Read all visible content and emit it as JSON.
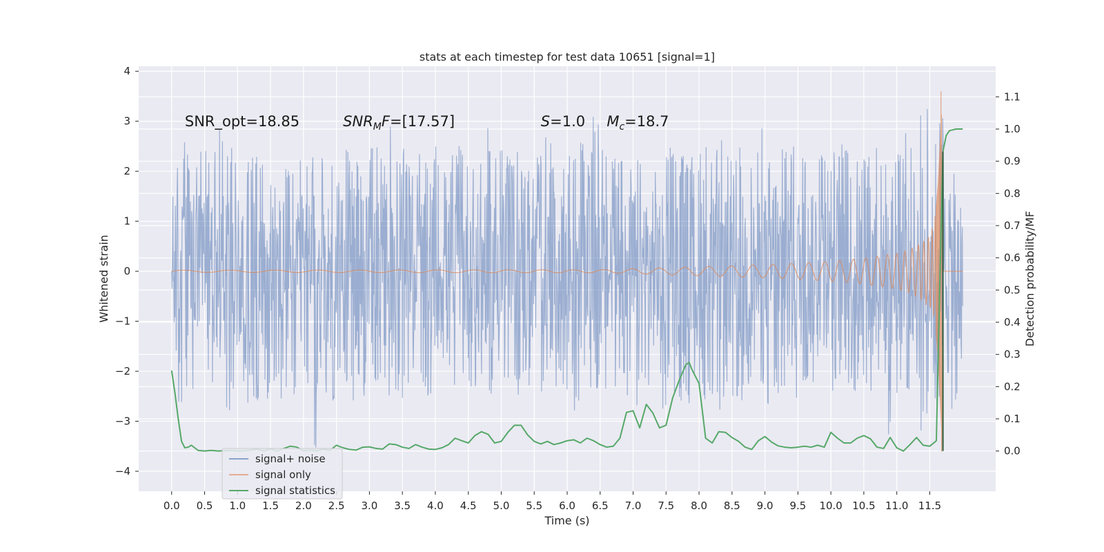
{
  "chart_data": {
    "type": "line",
    "title": "stats at each timestep for test data 10651 [signal=1]",
    "xlabel": "Time (s)",
    "ylabel": "Whitened strain",
    "y2label": "Detection probability/MF",
    "xlim": [
      -0.5,
      12.5
    ],
    "ylim": [
      -4.4,
      4.1
    ],
    "y2lim": [
      -0.125,
      1.195
    ],
    "x_ticks": [
      0.0,
      0.5,
      1.0,
      1.5,
      2.0,
      2.5,
      3.0,
      3.5,
      4.0,
      4.5,
      5.0,
      5.5,
      6.0,
      6.5,
      7.0,
      7.5,
      8.0,
      8.5,
      9.0,
      9.5,
      10.0,
      10.5,
      11.0,
      11.5
    ],
    "x_tick_labels": [
      "0.0",
      "0.5",
      "1.0",
      "1.5",
      "2.0",
      "2.5",
      "3.0",
      "3.5",
      "4.0",
      "4.5",
      "5.0",
      "5.5",
      "6.0",
      "6.5",
      "7.0",
      "7.5",
      "8.0",
      "8.5",
      "9.0",
      "9.5",
      "10.0",
      "10.5",
      "11.0",
      "11.5"
    ],
    "y_ticks": [
      -4,
      -3,
      -2,
      -1,
      0,
      1,
      2,
      3,
      4
    ],
    "y_tick_labels": [
      "−4",
      "−3",
      "−2",
      "−1",
      "0",
      "1",
      "2",
      "3",
      "4"
    ],
    "y2_ticks": [
      0.0,
      0.1,
      0.2,
      0.3,
      0.4,
      0.5,
      0.6,
      0.7,
      0.8,
      0.9,
      1.0,
      1.1
    ],
    "y2_tick_labels": [
      "0.0",
      "0.1",
      "0.2",
      "0.3",
      "0.4",
      "0.5",
      "0.6",
      "0.7",
      "0.8",
      "0.9",
      "1.0",
      "1.1"
    ],
    "grid": true,
    "legend_position": "bottom-left",
    "annotations": [
      {
        "key": "snr_opt",
        "label": "SNR_opt=18.85",
        "x": 0.2,
        "y": 2.9
      },
      {
        "key": "snr_mf",
        "label": "SNR_MF=[17.57]",
        "x": 2.6,
        "y": 2.9
      },
      {
        "key": "s",
        "label": "S=1.0",
        "x": 5.6,
        "y": 2.9
      },
      {
        "key": "mc",
        "label": "M_c=18.7",
        "x": 6.6,
        "y": 2.9
      }
    ],
    "series": [
      {
        "name": "signal+ noise",
        "color": "#4c72b0",
        "alpha": 0.5,
        "axis": "left",
        "t_range": [
          0.0,
          12.0
        ],
        "envelope_upper": [
          1.5,
          2.2,
          2.6,
          3.65,
          2.5,
          2.2,
          3.0,
          2.3,
          2.5,
          2.1,
          2.3,
          2.5,
          2.2,
          2.4,
          2.6,
          2.2,
          2.4,
          2.2,
          2.3,
          2.5,
          3.0,
          2.4,
          2.5,
          2.3,
          2.4,
          2.6,
          2.8,
          2.3,
          3.0,
          2.4,
          2.5,
          2.2,
          2.4,
          2.3,
          2.5,
          2.3,
          2.4,
          2.5,
          2.4,
          2.3,
          3.0,
          2.4,
          2.6,
          2.3,
          2.4,
          2.5,
          2.3,
          2.4,
          3.0,
          2.3,
          2.4,
          2.5,
          2.6,
          2.2,
          3.1,
          2.5,
          2.3,
          2.4,
          2.6,
          2.4,
          2.5,
          2.3,
          2.2,
          2.4,
          2.5,
          2.6,
          2.3,
          2.4,
          2.5,
          2.5,
          3.0,
          2.3,
          2.4,
          2.5,
          2.2,
          2.9,
          2.4,
          2.5,
          2.6,
          2.5,
          3.05,
          2.4,
          2.3,
          2.5,
          2.3,
          2.4,
          2.6,
          2.4,
          2.3,
          2.5,
          2.6,
          2.5,
          2.3,
          2.4,
          3.0,
          2.3,
          3.4,
          2.7,
          3.3,
          2.6,
          3.6,
          2.2
        ],
        "envelope_lower": [
          -1.6,
          -2.7,
          -2.3,
          -2.6,
          -2.5,
          -2.3,
          -2.6,
          -3.0,
          -2.4,
          -2.2,
          -2.8,
          -2.9,
          -2.6,
          -2.2,
          -2.7,
          -2.6,
          -2.5,
          -2.4,
          -3.6,
          -2.5,
          -2.4,
          -2.8,
          -2.2,
          -2.6,
          -2.4,
          -2.5,
          -2.3,
          -2.7,
          -2.5,
          -2.6,
          -2.4,
          -2.5,
          -2.3,
          -2.5,
          -2.6,
          -2.4,
          -2.3,
          -2.5,
          -2.7,
          -2.4,
          -2.8,
          -2.5,
          -2.3,
          -2.4,
          -2.6,
          -2.7,
          -2.3,
          -2.5,
          -2.6,
          -2.4,
          -2.5,
          -2.8,
          -2.6,
          -2.4,
          -2.5,
          -2.7,
          -2.4,
          -2.6,
          -2.5,
          -2.7,
          -2.5,
          -2.4,
          -2.3,
          -2.8,
          -2.5,
          -2.6,
          -2.7,
          -2.4,
          -2.9,
          -2.5,
          -2.8,
          -2.4,
          -2.5,
          -2.6,
          -2.5,
          -2.4,
          -2.7,
          -2.5,
          -2.4,
          -2.6,
          -2.7,
          -2.4,
          -2.3,
          -2.5,
          -2.6,
          -2.4,
          -2.5,
          -2.7,
          -2.4,
          -2.5,
          -2.6,
          -2.5,
          -3.3,
          -2.6,
          -2.5,
          -2.4,
          -3.2,
          -2.6,
          -2.9,
          -2.5,
          -2.6,
          -2.8
        ]
      },
      {
        "name": "signal only",
        "color": "#dd8452",
        "alpha": 0.5,
        "axis": "left",
        "t": [
          0.0,
          6.5,
          7.0,
          7.5,
          8.0,
          8.5,
          9.0,
          9.5,
          10.0,
          10.5,
          11.0,
          11.2,
          11.4,
          11.5,
          11.55,
          11.6,
          11.63,
          11.66,
          11.68,
          11.7,
          11.72,
          12.0
        ],
        "amplitude": [
          0.02,
          0.03,
          0.05,
          0.07,
          0.09,
          0.11,
          0.13,
          0.16,
          0.2,
          0.26,
          0.36,
          0.44,
          0.6,
          0.75,
          0.9,
          1.3,
          1.8,
          2.6,
          3.2,
          0.0,
          0.0,
          0.0
        ],
        "peak_max": 3.6,
        "peak_min": -3.6,
        "peak_time": 11.68
      },
      {
        "name": "signal statistics",
        "color": "#55a868",
        "alpha": 1.0,
        "axis": "right",
        "t": [
          0.0,
          0.05,
          0.1,
          0.15,
          0.2,
          0.25,
          0.3,
          0.4,
          0.5,
          0.6,
          0.7,
          0.8,
          0.9,
          1.0,
          1.1,
          1.2,
          1.3,
          1.4,
          1.5,
          1.6,
          1.7,
          1.8,
          1.9,
          2.0,
          2.1,
          2.2,
          2.3,
          2.4,
          2.5,
          2.6,
          2.7,
          2.8,
          2.9,
          3.0,
          3.1,
          3.2,
          3.3,
          3.4,
          3.5,
          3.6,
          3.7,
          3.8,
          3.9,
          4.0,
          4.1,
          4.2,
          4.3,
          4.4,
          4.5,
          4.6,
          4.7,
          4.8,
          4.9,
          5.0,
          5.1,
          5.2,
          5.3,
          5.4,
          5.5,
          5.6,
          5.7,
          5.8,
          5.9,
          6.0,
          6.1,
          6.2,
          6.3,
          6.4,
          6.5,
          6.6,
          6.7,
          6.8,
          6.9,
          7.0,
          7.1,
          7.2,
          7.3,
          7.4,
          7.5,
          7.6,
          7.7,
          7.8,
          7.85,
          7.9,
          8.0,
          8.1,
          8.2,
          8.3,
          8.4,
          8.5,
          8.6,
          8.7,
          8.8,
          8.9,
          9.0,
          9.1,
          9.2,
          9.3,
          9.4,
          9.5,
          9.6,
          9.7,
          9.8,
          9.9,
          10.0,
          10.1,
          10.2,
          10.3,
          10.4,
          10.5,
          10.6,
          10.7,
          10.8,
          10.9,
          11.0,
          11.1,
          11.2,
          11.3,
          11.4,
          11.5,
          11.6,
          11.65,
          11.7,
          11.75,
          11.8,
          11.9,
          12.0
        ],
        "values": [
          0.25,
          0.18,
          0.1,
          0.03,
          0.01,
          0.012,
          0.018,
          0.002,
          0.0,
          0.002,
          0.0,
          0.001,
          0.002,
          0.0,
          0.001,
          0.003,
          0.006,
          0.0,
          0.007,
          0.0,
          0.008,
          0.015,
          0.012,
          0.001,
          0.003,
          0.0,
          0.006,
          0.002,
          0.018,
          0.01,
          0.005,
          0.003,
          0.012,
          0.013,
          0.008,
          0.006,
          0.022,
          0.02,
          0.012,
          0.008,
          0.02,
          0.012,
          0.006,
          0.005,
          0.01,
          0.02,
          0.04,
          0.032,
          0.025,
          0.048,
          0.06,
          0.052,
          0.025,
          0.03,
          0.058,
          0.08,
          0.08,
          0.05,
          0.03,
          0.022,
          0.03,
          0.02,
          0.025,
          0.032,
          0.035,
          0.025,
          0.04,
          0.032,
          0.02,
          0.012,
          0.015,
          0.04,
          0.12,
          0.125,
          0.072,
          0.145,
          0.118,
          0.072,
          0.08,
          0.165,
          0.22,
          0.268,
          0.275,
          0.25,
          0.21,
          0.04,
          0.025,
          0.06,
          0.058,
          0.042,
          0.03,
          0.012,
          0.005,
          0.032,
          0.045,
          0.028,
          0.016,
          0.012,
          0.01,
          0.012,
          0.015,
          0.012,
          0.018,
          0.012,
          0.058,
          0.04,
          0.025,
          0.025,
          0.04,
          0.048,
          0.038,
          0.012,
          0.008,
          0.042,
          0.01,
          0.0,
          0.02,
          0.042,
          0.018,
          0.015,
          0.032,
          0.5,
          0.93,
          0.98,
          0.995,
          1.0,
          1.0
        ]
      }
    ]
  }
}
